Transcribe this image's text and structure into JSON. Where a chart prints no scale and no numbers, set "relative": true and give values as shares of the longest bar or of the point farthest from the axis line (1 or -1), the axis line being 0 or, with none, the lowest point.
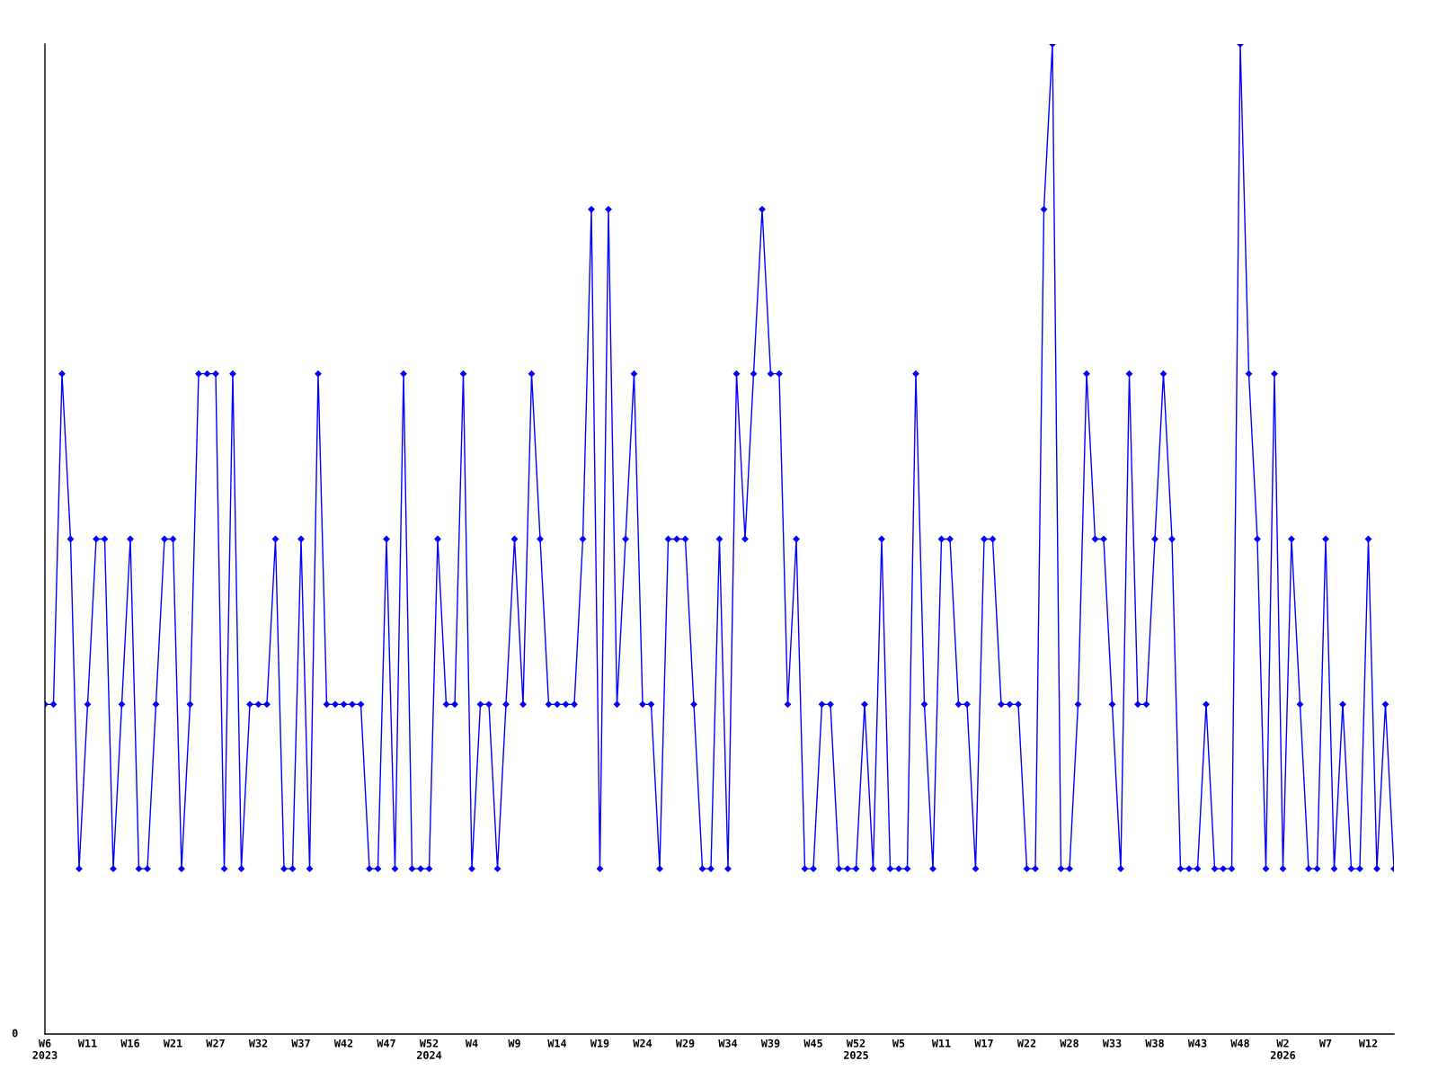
{
  "chart_data": {
    "type": "line",
    "relative": true,
    "annotations": [
      "0"
    ],
    "grid": false,
    "legend": false,
    "marker": "diamond",
    "line_style": "solid",
    "categories": [
      "W6\n2023",
      null,
      null,
      null,
      null,
      "W11",
      null,
      null,
      null,
      null,
      "W16",
      null,
      null,
      null,
      null,
      "W21",
      null,
      null,
      null,
      null,
      "W27",
      null,
      null,
      null,
      null,
      "W32",
      null,
      null,
      null,
      null,
      "W37",
      null,
      null,
      null,
      null,
      "W42",
      null,
      null,
      null,
      null,
      "W47",
      null,
      null,
      null,
      null,
      "W52\n2024",
      null,
      null,
      null,
      null,
      "W4",
      null,
      null,
      null,
      null,
      "W9",
      null,
      null,
      null,
      null,
      "W14",
      null,
      null,
      null,
      null,
      "W19",
      null,
      null,
      null,
      null,
      "W24",
      null,
      null,
      null,
      null,
      "W29",
      null,
      null,
      null,
      null,
      "W34",
      null,
      null,
      null,
      null,
      "W39",
      null,
      null,
      null,
      null,
      "W45",
      null,
      null,
      null,
      null,
      "W52\n2025",
      null,
      null,
      null,
      null,
      "W5",
      null,
      null,
      null,
      null,
      "W11",
      null,
      null,
      null,
      null,
      "W17",
      null,
      null,
      null,
      null,
      "W22",
      null,
      null,
      null,
      null,
      "W28",
      null,
      null,
      null,
      null,
      "W33",
      null,
      null,
      null,
      null,
      "W38",
      null,
      null,
      null,
      null,
      "W43",
      null,
      null,
      null,
      null,
      "W48",
      null,
      null,
      null,
      null,
      "W2\n2026",
      null,
      null,
      null,
      null,
      "W7",
      null,
      null,
      null,
      null,
      "W12",
      null,
      null,
      null
    ],
    "series": [
      {
        "color": "#0000ff",
        "values": [
          0.333,
          0.333,
          0.667,
          0.5,
          0.167,
          0.333,
          0.5,
          0.5,
          0.167,
          0.333,
          0.5,
          0.167,
          0.167,
          0.333,
          0.5,
          0.5,
          0.167,
          0.333,
          0.667,
          0.667,
          0.667,
          0.167,
          0.667,
          0.167,
          0.333,
          0.333,
          0.333,
          0.5,
          0.167,
          0.167,
          0.5,
          0.167,
          0.667,
          0.333,
          0.333,
          0.333,
          0.333,
          0.333,
          0.167,
          0.167,
          0.5,
          0.167,
          0.667,
          0.167,
          0.167,
          0.167,
          0.5,
          0.333,
          0.333,
          0.667,
          0.167,
          0.333,
          0.333,
          0.167,
          0.333,
          0.5,
          0.333,
          0.667,
          0.5,
          0.333,
          0.333,
          0.333,
          0.333,
          0.5,
          0.833,
          0.167,
          0.833,
          0.333,
          0.5,
          0.667,
          0.333,
          0.333,
          0.167,
          0.5,
          0.5,
          0.5,
          0.333,
          0.167,
          0.167,
          0.5,
          0.167,
          0.667,
          0.5,
          0.667,
          0.833,
          0.667,
          0.667,
          0.333,
          0.5,
          0.167,
          0.167,
          0.333,
          0.333,
          0.167,
          0.167,
          0.167,
          0.333,
          0.167,
          0.5,
          0.167,
          0.167,
          0.167,
          0.667,
          0.333,
          0.167,
          0.5,
          0.5,
          0.333,
          0.333,
          0.167,
          0.5,
          0.5,
          0.333,
          0.333,
          0.333,
          0.167,
          0.167,
          0.833,
          1,
          0.167,
          0.167,
          0.333,
          0.667,
          0.5,
          0.5,
          0.333,
          0.167,
          0.667,
          0.333,
          0.333,
          0.5,
          0.667,
          0.5,
          0.167,
          0.167,
          0.167,
          0.333,
          0.167,
          0.167,
          0.167,
          1,
          0.667,
          0.5,
          0.167,
          0.667,
          0.167,
          0.5,
          0.333,
          0.167,
          0.167,
          0.5,
          0.167,
          0.333,
          0.167,
          0.167,
          0.5,
          0.167,
          0.333,
          0.167
        ]
      }
    ]
  }
}
